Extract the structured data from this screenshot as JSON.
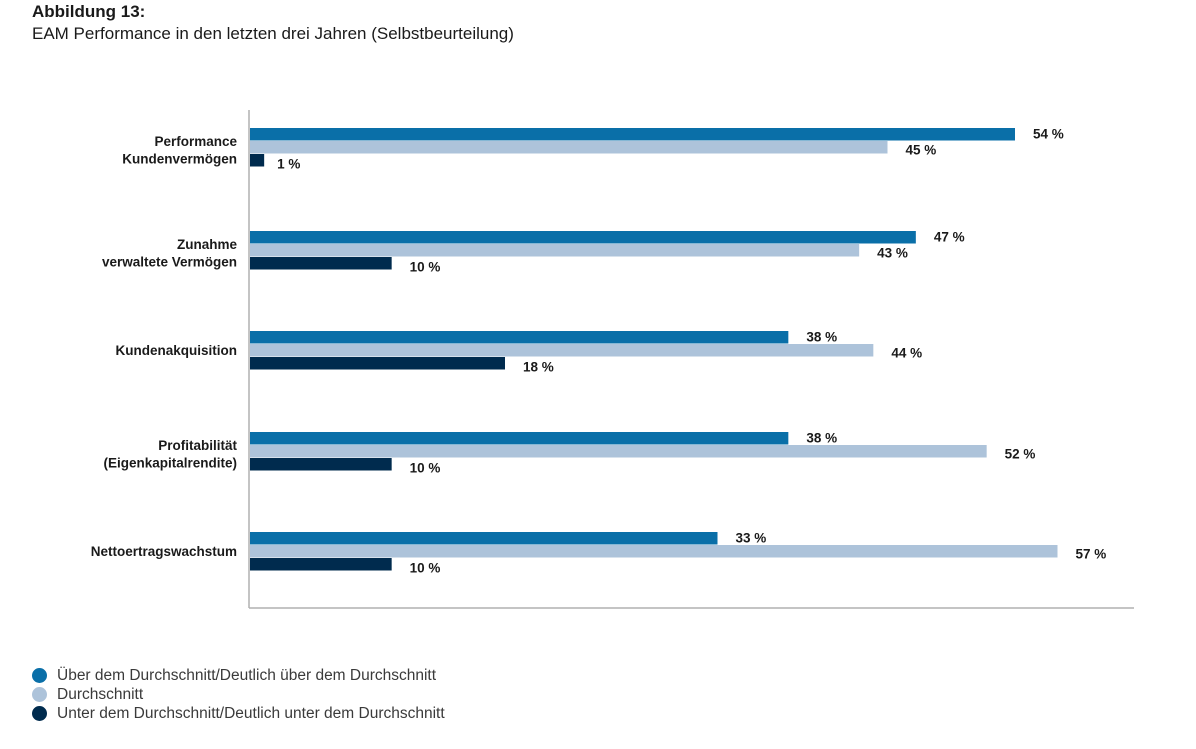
{
  "figure": {
    "number": "Abbildung 13:",
    "title": "EAM Performance in den letzten drei Jahren (Selbstbeurteilung)"
  },
  "chart_data": {
    "type": "bar",
    "orientation": "horizontal",
    "title": "EAM Performance in den letzten drei Jahren (Selbstbeurteilung)",
    "xlabel": "",
    "ylabel": "",
    "xlim": [
      0,
      62.5
    ],
    "grid": false,
    "value_suffix": " %",
    "categories": [
      [
        "Performance",
        "Kundenvermögen"
      ],
      [
        "Zunahme",
        "verwaltete Vermögen"
      ],
      [
        "Kundenakquisition"
      ],
      [
        "Profitabilität",
        "(Eigenkapitalrendite)"
      ],
      [
        "Nettoertragswachstum"
      ]
    ],
    "series": [
      {
        "name": "Über dem Durchschnitt/Deutlich über dem Durchschnitt",
        "color": "#0a6fa8",
        "values": [
          54,
          47,
          38,
          38,
          33
        ]
      },
      {
        "name": "Durchschnitt",
        "color": "#adc3da",
        "values": [
          45,
          43,
          44,
          52,
          57
        ]
      },
      {
        "name": "Unter dem Durchschnitt/Deutlich unter dem Durchschnitt",
        "color": "#002b4e",
        "values": [
          1,
          10,
          18,
          10,
          10
        ]
      }
    ],
    "legend_position": "bottom-left"
  }
}
